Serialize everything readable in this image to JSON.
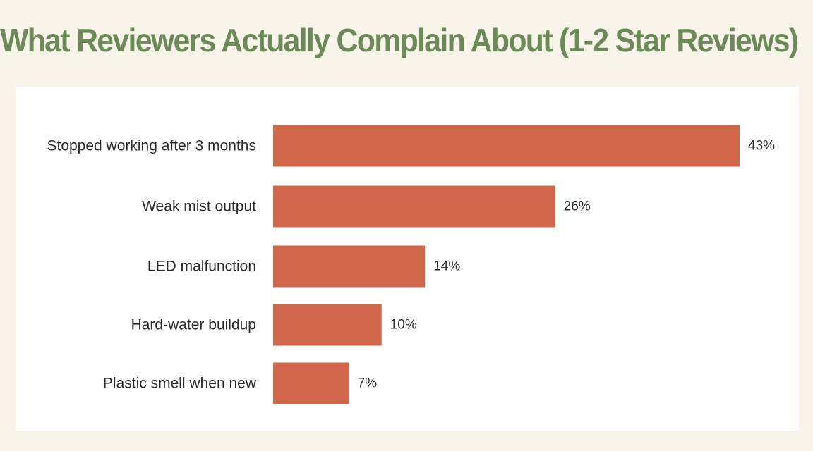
{
  "title": "What Reviewers Actually Complain About (1-2 Star Reviews)",
  "colors": {
    "background": "#f8f4ea",
    "panel": "#ffffff",
    "title": "#6b8a57",
    "bar": "#d0674a",
    "text": "#2b2b2b"
  },
  "chart_data": {
    "type": "bar",
    "orientation": "horizontal",
    "title": "What Reviewers Actually Complain About (1-2 Star Reviews)",
    "categories": [
      "Stopped working after 3 months",
      "Weak mist output",
      "LED malfunction",
      "Hard-water buildup",
      "Plastic smell when new"
    ],
    "values": [
      43,
      26,
      14,
      10,
      7
    ],
    "value_labels": [
      "43%",
      "26%",
      "14%",
      "10%",
      "7%"
    ],
    "unit": "%",
    "xlim": [
      0,
      43
    ],
    "grid": false,
    "legend": "none",
    "xlabel": "",
    "ylabel": ""
  }
}
